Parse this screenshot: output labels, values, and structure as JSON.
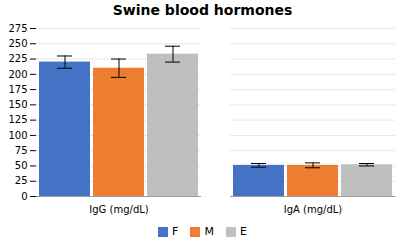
{
  "chart_data": {
    "type": "bar",
    "title": "Swine blood hormones",
    "categories": [
      "IgG (mg/dL)",
      "IgA (mg/dL)"
    ],
    "series": [
      {
        "name": "F",
        "color": "#4472C4",
        "values": [
          220,
          51
        ],
        "errors": [
          10,
          3
        ]
      },
      {
        "name": "M",
        "color": "#ED7D31",
        "values": [
          210,
          51
        ],
        "errors": [
          15,
          4
        ]
      },
      {
        "name": "E",
        "color": "#BFBFBF",
        "values": [
          233,
          52
        ],
        "errors": [
          13,
          2
        ]
      }
    ],
    "ylim": [
      0,
      275
    ],
    "yticks": [
      0,
      25,
      50,
      75,
      100,
      125,
      150,
      175,
      200,
      225,
      250,
      275
    ],
    "grid": true,
    "legend": "bottom"
  }
}
